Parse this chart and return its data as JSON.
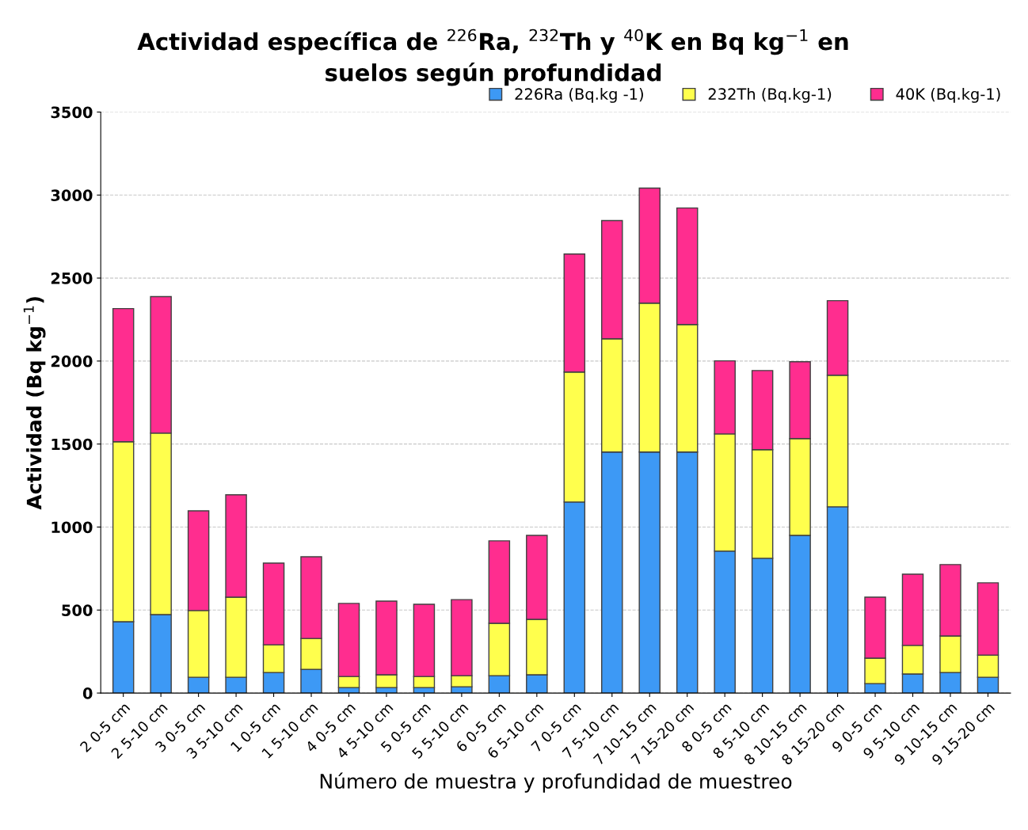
{
  "chart_data": {
    "type": "bar",
    "stacked": true,
    "title": "Actividad específica de $^{226}$Ra, $^{232}$Th y $^{40}$K en Bq kg$^{−1}$ en\nsuelos según profundidad",
    "xlabel": "Número de muestra y profundidad de muestreo",
    "ylabel": "Actividad (Bq kg$^{−1}$)",
    "categories": [
      "2 0-5 cm",
      "2 5-10 cm",
      "3 0-5 cm",
      "3 5-10 cm",
      "1 0-5 cm",
      "1 5-10 cm",
      "4 0-5 cm",
      "4 5-10 cm",
      "5 0-5 cm",
      "5 5-10 cm",
      "6 0-5 cm",
      "6 5-10 cm",
      "7 0-5 cm",
      "7 5-10 cm",
      "7 10-15 cm",
      "7 15-20 cm",
      "8 0-5 cm",
      "8 5-10 cm",
      "8 10-15 cm",
      "8 15-20 cm",
      "9 0-5 cm",
      "9 5-10 cm",
      "9 10-15 cm",
      "9 15-20 cm"
    ],
    "series": [
      {
        "name": "226Ra (Bq.kg -1)",
        "color": "#3d99f5",
        "values": [
          430,
          473,
          95,
          95,
          124,
          143,
          33,
          33,
          33,
          38,
          105,
          110,
          1151,
          1452,
          1452,
          1452,
          855,
          812,
          950,
          1122,
          57,
          115,
          124,
          95
        ]
      },
      {
        "name": "232Th (Bq.kg-1)",
        "color": "#ffff4d",
        "values": [
          1084,
          1093,
          402,
          483,
          167,
          186,
          67,
          77,
          67,
          67,
          315,
          334,
          783,
          682,
          897,
          768,
          706,
          654,
          583,
          793,
          153,
          172,
          220,
          134
        ]
      },
      {
        "name": "40K (Bq.kg-1)",
        "color": "#ff2d8f",
        "values": [
          802,
          822,
          601,
          616,
          492,
          492,
          440,
          444,
          435,
          458,
          497,
          506,
          711,
          712,
          693,
          702,
          440,
          477,
          463,
          449,
          368,
          429,
          430,
          435
        ]
      }
    ],
    "ylim": [
      0,
      3500
    ],
    "yticks": [
      0,
      500,
      1000,
      1500,
      2000,
      2500,
      3000,
      3500
    ],
    "grid": "y",
    "legend": "top right"
  }
}
